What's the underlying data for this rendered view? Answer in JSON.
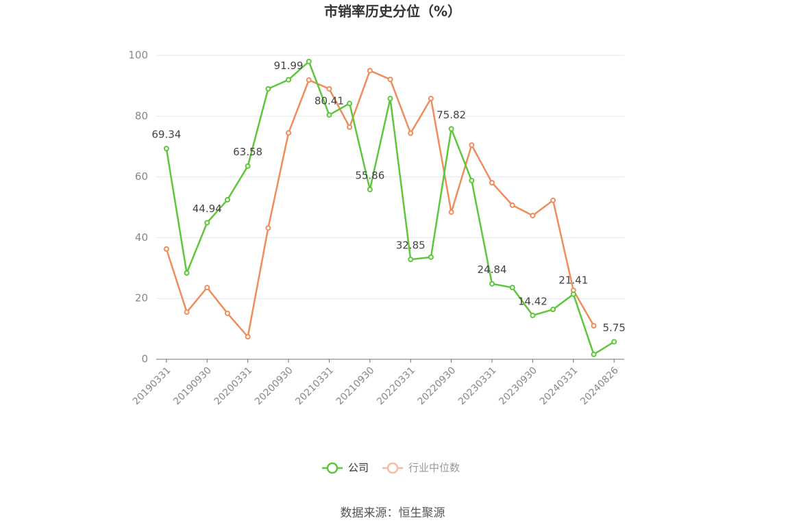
{
  "chart_data": {
    "type": "line",
    "title": "市销率历史分位（%）",
    "categories": [
      "20190331",
      null,
      "20190930",
      null,
      "20200331",
      null,
      "20200930",
      null,
      "20210331",
      null,
      "20210930",
      null,
      "20220331",
      null,
      "20220930",
      null,
      "20230331",
      null,
      "20230930",
      null,
      "20240331",
      null,
      "20240826"
    ],
    "series": [
      {
        "name": "公司",
        "color": "#5cc73a",
        "values": [
          69.34,
          28.4,
          44.94,
          52.5,
          63.58,
          89,
          91.99,
          98,
          80.41,
          84.2,
          55.86,
          85.8,
          32.85,
          33.6,
          75.82,
          58.8,
          24.84,
          23.6,
          14.42,
          16.4,
          21.41,
          1.6,
          5.75
        ],
        "value_labels": [
          "69.34",
          null,
          "44.94",
          null,
          "63.58",
          null,
          "91.99",
          null,
          "80.41",
          null,
          "55.86",
          null,
          "32.85",
          null,
          "75.82",
          null,
          "24.84",
          null,
          "14.42",
          null,
          "21.41",
          null,
          "5.75"
        ]
      },
      {
        "name": "行业中位数",
        "color": "#f08c5a",
        "values": [
          36.3,
          15.5,
          23.6,
          15.1,
          7.4,
          43.2,
          74.5,
          91.9,
          89,
          76.4,
          95,
          92.1,
          74.4,
          85.8,
          48.4,
          70.5,
          58.1,
          50.7,
          47.3,
          52.3,
          22.7,
          11,
          null
        ]
      }
    ],
    "ylim": [
      0,
      100
    ],
    "yticks": [
      0,
      20,
      40,
      60,
      80,
      100
    ],
    "grid": true,
    "legend": "bottom",
    "source": "数据来源：恒生聚源"
  }
}
